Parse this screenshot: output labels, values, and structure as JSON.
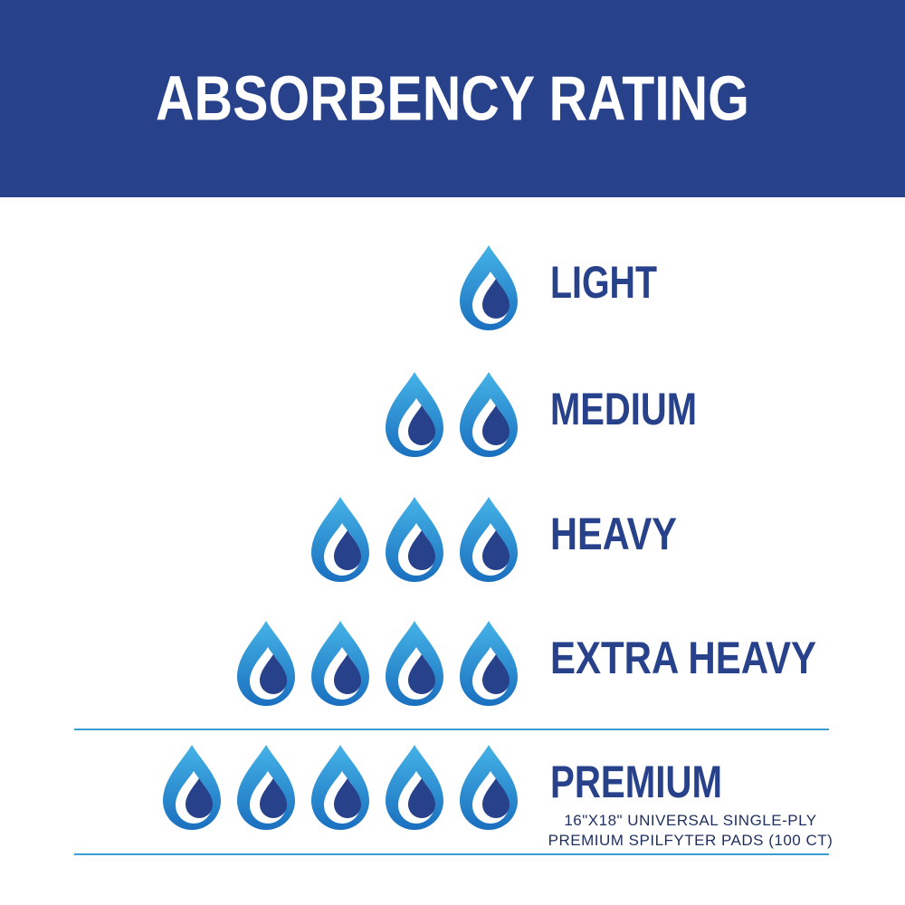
{
  "header": {
    "title": "ABSORBENCY RATING"
  },
  "levels": [
    "LIGHT",
    "MEDIUM",
    "HEAVY",
    "EXTRA HEAVY",
    "PREMIUM"
  ],
  "note": [
    "16\"X18\" UNIVERSAL SINGLE-PLY",
    "PREMIUM SPILFYTER PADS (100 CT)"
  ]
}
